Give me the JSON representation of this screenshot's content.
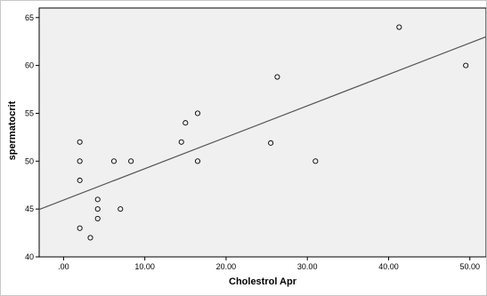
{
  "chart_data": {
    "type": "scatter",
    "title": "",
    "xlabel": "Cholestrol Apr",
    "ylabel": "spermatocrit",
    "xlim": [
      -3,
      52
    ],
    "ylim": [
      40,
      66
    ],
    "x_ticks": [
      0,
      10,
      20,
      30,
      40,
      50
    ],
    "x_tick_labels": [
      ".00",
      "10.00",
      "20.00",
      "30.00",
      "40.00",
      "50.00"
    ],
    "y_ticks": [
      40,
      45,
      50,
      55,
      60,
      65
    ],
    "y_tick_labels": [
      "40",
      "45",
      "50",
      "55",
      "60",
      "65"
    ],
    "grid": false,
    "series": [
      {
        "points": [
          {
            "x": 2.0,
            "y": 52
          },
          {
            "x": 2.0,
            "y": 50
          },
          {
            "x": 2.0,
            "y": 48
          },
          {
            "x": 2.0,
            "y": 43
          },
          {
            "x": 3.3,
            "y": 42
          },
          {
            "x": 4.2,
            "y": 46
          },
          {
            "x": 4.2,
            "y": 45
          },
          {
            "x": 4.2,
            "y": 44
          },
          {
            "x": 6.2,
            "y": 50
          },
          {
            "x": 7.0,
            "y": 45
          },
          {
            "x": 8.3,
            "y": 50
          },
          {
            "x": 14.5,
            "y": 52
          },
          {
            "x": 15.0,
            "y": 54
          },
          {
            "x": 16.5,
            "y": 55
          },
          {
            "x": 16.5,
            "y": 50
          },
          {
            "x": 25.5,
            "y": 51.9
          },
          {
            "x": 26.3,
            "y": 58.8
          },
          {
            "x": 31.0,
            "y": 50
          },
          {
            "x": 41.3,
            "y": 64
          },
          {
            "x": 49.5,
            "y": 60
          }
        ]
      }
    ],
    "fit_line": {
      "x": [
        -3,
        52
      ],
      "y": [
        44.95,
        63.0
      ]
    },
    "colors": {
      "plot_background": "#f0f0f0",
      "marker": "#000000",
      "fit_line": "#555555"
    }
  }
}
